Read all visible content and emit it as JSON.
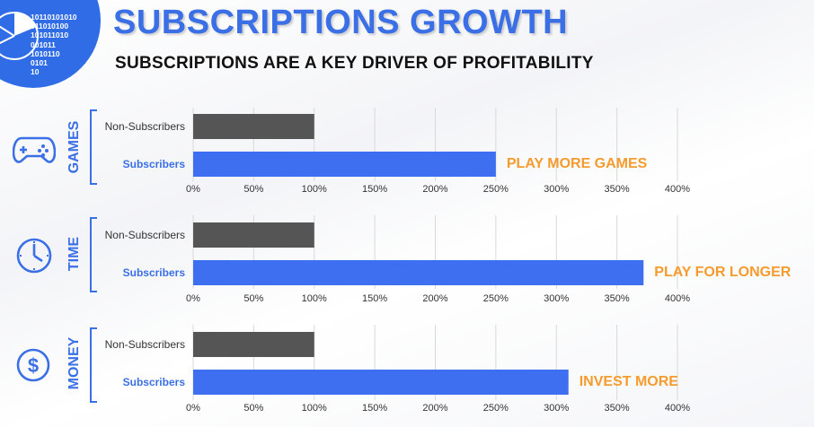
{
  "header": {
    "title": "SUBSCRIPTIONS GROWTH",
    "subtitle": "SUBSCRIPTIONS ARE A KEY DRIVER OF PROFITABILITY",
    "logo_binary": [
      "10110101010",
      "011010100",
      "101011010",
      "001011",
      "1010110",
      "0101",
      "10"
    ]
  },
  "colors": {
    "brand_blue": "#3a6fe6",
    "subscriber_bar": "#3d6ff0",
    "non_subscriber_bar": "#555555",
    "callout_orange": "#f59b2f"
  },
  "sections": [
    {
      "label": "GAMES",
      "icon": "gamepad-icon",
      "callout": "PLAY MORE GAMES"
    },
    {
      "label": "TIME",
      "icon": "clock-icon",
      "callout": "PLAY FOR LONGER"
    },
    {
      "label": "MONEY",
      "icon": "dollar-coin-icon",
      "callout": "INVEST MORE"
    }
  ],
  "chart_data": [
    {
      "type": "bar",
      "orientation": "horizontal",
      "categories": [
        "Non-Subscribers",
        "Subscribers"
      ],
      "values": [
        100,
        250
      ],
      "xlim": [
        0,
        400
      ],
      "grid": true,
      "xticks": [
        "0%",
        "50%",
        "100%",
        "150%",
        "200%",
        "250%",
        "300%",
        "350%",
        "400%"
      ],
      "annotation": "PLAY MORE GAMES"
    },
    {
      "type": "bar",
      "orientation": "horizontal",
      "categories": [
        "Non-Subscribers",
        "Subscribers"
      ],
      "values": [
        100,
        372
      ],
      "xlim": [
        0,
        400
      ],
      "grid": true,
      "xticks": [
        "0%",
        "50%",
        "100%",
        "150%",
        "200%",
        "250%",
        "300%",
        "350%",
        "400%"
      ],
      "annotation": "PLAY FOR LONGER"
    },
    {
      "type": "bar",
      "orientation": "horizontal",
      "categories": [
        "Non-Subscribers",
        "Subscribers"
      ],
      "values": [
        100,
        310
      ],
      "xlim": [
        0,
        400
      ],
      "grid": true,
      "xticks": [
        "0%",
        "50%",
        "100%",
        "150%",
        "200%",
        "250%",
        "300%",
        "350%",
        "400%"
      ],
      "annotation": "INVEST MORE"
    }
  ]
}
